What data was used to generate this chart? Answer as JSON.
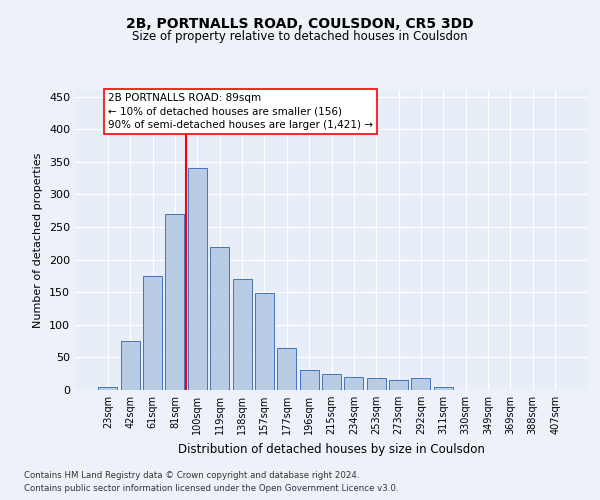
{
  "title1": "2B, PORTNALLS ROAD, COULSDON, CR5 3DD",
  "title2": "Size of property relative to detached houses in Coulsdon",
  "xlabel": "Distribution of detached houses by size in Coulsdon",
  "ylabel": "Number of detached properties",
  "bar_labels": [
    "23sqm",
    "42sqm",
    "61sqm",
    "81sqm",
    "100sqm",
    "119sqm",
    "138sqm",
    "157sqm",
    "177sqm",
    "196sqm",
    "215sqm",
    "234sqm",
    "253sqm",
    "273sqm",
    "292sqm",
    "311sqm",
    "330sqm",
    "349sqm",
    "369sqm",
    "388sqm",
    "407sqm"
  ],
  "bar_values": [
    5,
    75,
    175,
    270,
    340,
    220,
    170,
    148,
    65,
    30,
    25,
    20,
    18,
    15,
    18,
    5,
    0,
    0,
    0,
    0,
    0
  ],
  "bar_color": "#b8cce4",
  "bar_edge_color": "#4472c4",
  "vline_color": "red",
  "annotation_text": "2B PORTNALLS ROAD: 89sqm\n← 10% of detached houses are smaller (156)\n90% of semi-detached houses are larger (1,421) →",
  "annotation_box_color": "white",
  "annotation_box_edge_color": "red",
  "ylim": [
    0,
    460
  ],
  "yticks": [
    0,
    50,
    100,
    150,
    200,
    250,
    300,
    350,
    400,
    450
  ],
  "footer_line1": "Contains HM Land Registry data © Crown copyright and database right 2024.",
  "footer_line2": "Contains public sector information licensed under the Open Government Licence v3.0.",
  "background_color": "#edf2f9",
  "plot_bg_color": "#e8eef8"
}
